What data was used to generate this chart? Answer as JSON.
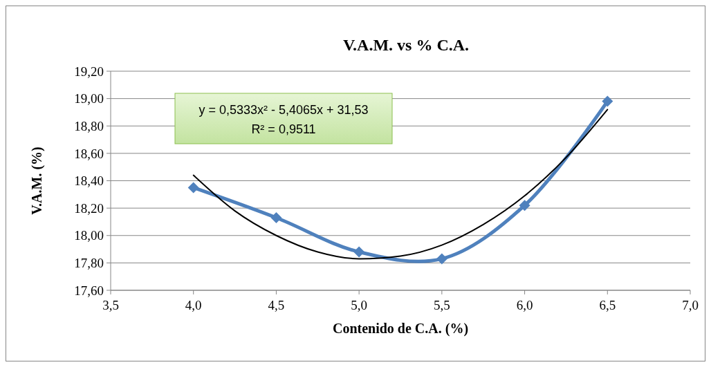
{
  "chart_data": {
    "type": "line",
    "title": "V.A.M. vs % C.A.",
    "xlabel": "Contenido de C.A. (%)",
    "ylabel": "V.A.M. (%)",
    "x": [
      4.0,
      4.5,
      5.0,
      5.5,
      6.0,
      6.5
    ],
    "series": [
      {
        "color": "#4f81bd",
        "values": [
          18.35,
          18.13,
          17.88,
          17.83,
          18.22,
          18.98
        ],
        "marker": "diamond"
      },
      {
        "type": "line",
        "color": "#000000",
        "marker": "none",
        "x": [
          4.0,
          4.25,
          4.5,
          4.75,
          5.0,
          5.25,
          5.5,
          5.75,
          6.0,
          6.25,
          6.5
        ],
        "values": [
          18.44,
          18.18,
          18.0,
          17.88,
          17.83,
          17.85,
          17.93,
          18.08,
          18.29,
          18.57,
          18.92
        ]
      }
    ],
    "xlim": [
      3.5,
      7.0
    ],
    "xticks": [
      {
        "value": 3.5,
        "label": "3,5"
      },
      {
        "value": 4.0,
        "label": "4,0"
      },
      {
        "value": 4.5,
        "label": "4,5"
      },
      {
        "value": 5.0,
        "label": "5,0"
      },
      {
        "value": 5.5,
        "label": "5,5"
      },
      {
        "value": 6.0,
        "label": "6,0"
      },
      {
        "value": 6.5,
        "label": "6,5"
      },
      {
        "value": 7.0,
        "label": "7,0"
      }
    ],
    "ylim": [
      17.6,
      19.2
    ],
    "yticks": [
      {
        "value": 17.6,
        "label": "17,60"
      },
      {
        "value": 17.8,
        "label": "17,80"
      },
      {
        "value": 18.0,
        "label": "18,00"
      },
      {
        "value": 18.2,
        "label": "18,20"
      },
      {
        "value": 18.4,
        "label": "18,40"
      },
      {
        "value": 18.6,
        "label": "18,60"
      },
      {
        "value": 18.8,
        "label": "18,80"
      },
      {
        "value": 19.0,
        "label": "19,00"
      },
      {
        "value": 19.2,
        "label": "19,20"
      }
    ],
    "grid": "y",
    "annotations": [
      "y = 0,5333x² - 5,4065x + 31,53",
      "R² = 0,9511"
    ]
  }
}
